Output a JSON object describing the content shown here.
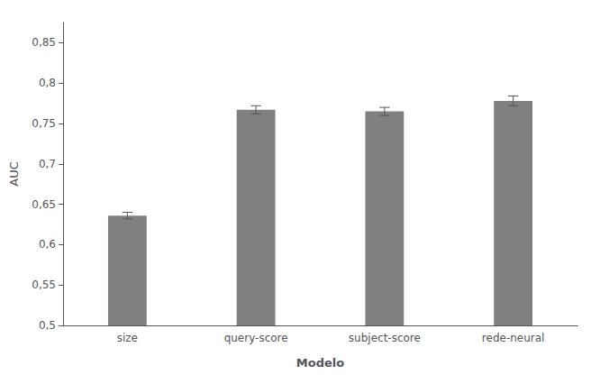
{
  "chart_data": {
    "type": "bar",
    "categories": [
      "size",
      "query-score",
      "subject-score",
      "rede-neural"
    ],
    "values": [
      0.636,
      0.767,
      0.765,
      0.778
    ],
    "errors": [
      0.004,
      0.005,
      0.005,
      0.006
    ],
    "color": "#808080",
    "xlabel": "Modelo",
    "ylabel": "AUC",
    "ylim": [
      0.5,
      0.875
    ],
    "yticks": [
      {
        "value": 0.5,
        "label": "0,5"
      },
      {
        "value": 0.55,
        "label": "0,55"
      },
      {
        "value": 0.6,
        "label": "0,6"
      },
      {
        "value": 0.65,
        "label": "0,65"
      },
      {
        "value": 0.7,
        "label": "0,7"
      },
      {
        "value": 0.75,
        "label": "0,75"
      },
      {
        "value": 0.8,
        "label": "0,8"
      },
      {
        "value": 0.85,
        "label": "0,85"
      }
    ],
    "grid": false
  }
}
